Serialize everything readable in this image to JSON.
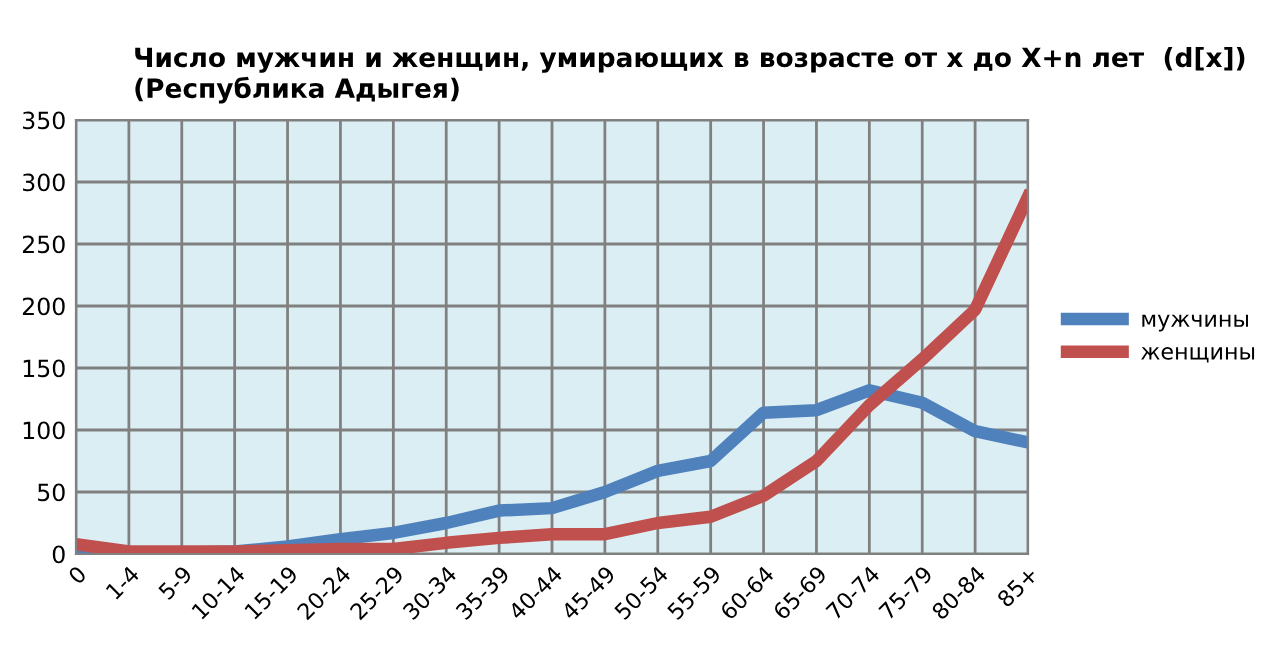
{
  "chart_data": {
    "type": "line",
    "title": "Число мужчин и женщин, умирающих в возрасте от x до X+n лет  (d[x])\n(Республика Адыгея)",
    "categories": [
      "0",
      "1-4",
      "5-9",
      "10-14",
      "15-19",
      "20-24",
      "25-29",
      "30-34",
      "35-39",
      "40-44",
      "45-49",
      "50-54",
      "55-59",
      "60-64",
      "65-69",
      "70-74",
      "75-79",
      "80-84",
      "85+"
    ],
    "series": [
      {
        "name": "мужчины",
        "color": "#4f81bd",
        "values": [
          4,
          1,
          1,
          2,
          6,
          12,
          17,
          25,
          35,
          37,
          50,
          67,
          75,
          114,
          116,
          132,
          122,
          99,
          90
        ]
      },
      {
        "name": "женщины",
        "color": "#c0504d",
        "values": [
          8,
          2,
          2,
          2,
          3,
          4,
          4,
          9,
          13,
          16,
          16,
          25,
          30,
          47,
          75,
          120,
          157,
          197,
          288
        ]
      }
    ],
    "ylim": [
      0,
      350
    ],
    "yticks": [
      0,
      50,
      100,
      150,
      200,
      250,
      300,
      350
    ],
    "grid": true,
    "legend": "right",
    "marker": "none",
    "line_style": "solid"
  }
}
